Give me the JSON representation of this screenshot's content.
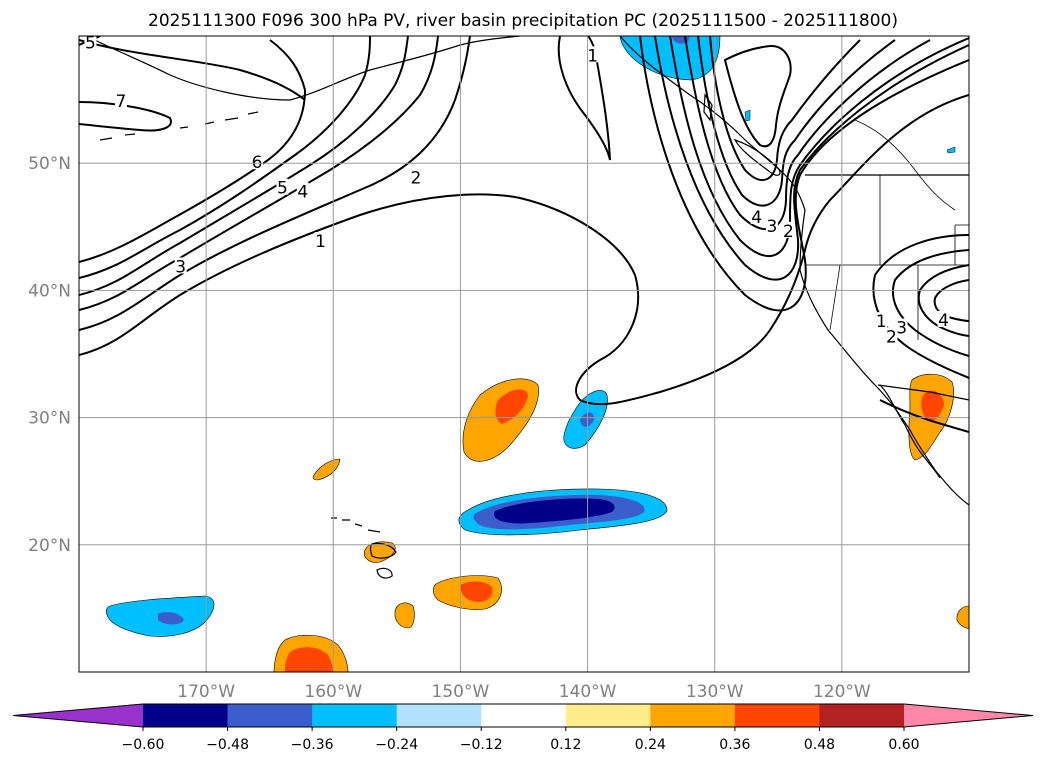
{
  "chart_data": {
    "type": "contour_map",
    "title": "2025111300 F096 300 hPa PV, river basin precipitation PC (2025111500 - 2025111800)",
    "lon_range": [
      -180,
      -110
    ],
    "lat_range": [
      10,
      60
    ],
    "lat_ticks": [
      {
        "value": 20,
        "label": "20°N"
      },
      {
        "value": 30,
        "label": "30°N"
      },
      {
        "value": 40,
        "label": "40°N"
      },
      {
        "value": 50,
        "label": "50°N"
      }
    ],
    "lon_ticks": [
      {
        "value": -170,
        "label": "170°W"
      },
      {
        "value": -160,
        "label": "160°W"
      },
      {
        "value": -150,
        "label": "150°W"
      },
      {
        "value": -140,
        "label": "140°W"
      },
      {
        "value": -130,
        "label": "130°W"
      },
      {
        "value": -120,
        "label": "120°W"
      }
    ],
    "grid": true,
    "colorbar": {
      "orientation": "horizontal",
      "extend": "both",
      "levels": [
        -0.72,
        -0.6,
        -0.48,
        -0.36,
        -0.24,
        -0.12,
        0.12,
        0.24,
        0.36,
        0.48,
        0.6,
        0.72
      ],
      "tick_labels": [
        "−0.60",
        "−0.48",
        "−0.36",
        "−0.24",
        "−0.12",
        "0.12",
        "0.24",
        "0.36",
        "0.48",
        "0.60"
      ],
      "colors": [
        "#9932cc",
        "#00008b",
        "#3a5fcd",
        "#00bfff",
        "#b0e2ff",
        "#ffffff",
        "#ffec8b",
        "#ffa500",
        "#ff4500",
        "#b22222",
        "#ff88aa"
      ]
    },
    "pv_contour_labels": [
      {
        "text": "5",
        "lon": -179.1,
        "lat": 59.4
      },
      {
        "text": "7",
        "lon": -176.7,
        "lat": 54.8
      },
      {
        "text": "6",
        "lon": -166.0,
        "lat": 50.0
      },
      {
        "text": "5",
        "lon": -164.0,
        "lat": 48.0
      },
      {
        "text": "4",
        "lon": -162.4,
        "lat": 47.7
      },
      {
        "text": "3",
        "lon": -172.0,
        "lat": 41.8
      },
      {
        "text": "2",
        "lon": -153.5,
        "lat": 48.8
      },
      {
        "text": "1",
        "lon": -161.0,
        "lat": 43.8
      },
      {
        "text": "1",
        "lon": -139.6,
        "lat": 58.4
      },
      {
        "text": "4",
        "lon": -126.7,
        "lat": 45.7
      },
      {
        "text": "3",
        "lon": -125.5,
        "lat": 45.0
      },
      {
        "text": "2",
        "lon": -124.2,
        "lat": 44.6
      },
      {
        "text": "1",
        "lon": -116.9,
        "lat": 37.5
      },
      {
        "text": "2",
        "lon": -116.1,
        "lat": 36.3
      },
      {
        "text": "3",
        "lon": -115.3,
        "lat": 37.0
      },
      {
        "text": "4",
        "lon": -112.0,
        "lat": 37.6
      }
    ]
  }
}
